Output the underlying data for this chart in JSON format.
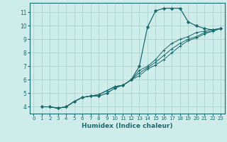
{
  "title": "",
  "xlabel": "Humidex (Indice chaleur)",
  "ylabel": "",
  "background_color": "#ceecea",
  "grid_color": "#a8ceca",
  "line_color": "#1a6b6b",
  "xlim": [
    -0.5,
    23.5
  ],
  "ylim": [
    3.5,
    11.7
  ],
  "xticks": [
    0,
    1,
    2,
    3,
    4,
    5,
    6,
    7,
    8,
    9,
    10,
    11,
    12,
    13,
    14,
    15,
    16,
    17,
    18,
    19,
    20,
    21,
    22,
    23
  ],
  "yticks": [
    4,
    5,
    6,
    7,
    8,
    9,
    10,
    11
  ],
  "series": [
    [
      4.0,
      4.0,
      3.9,
      4.0,
      4.4,
      4.7,
      4.8,
      4.8,
      5.0,
      5.4,
      5.6,
      6.0,
      7.0,
      9.9,
      11.1,
      11.3,
      11.3,
      11.3,
      10.3,
      10.0,
      9.8,
      9.7,
      9.8
    ],
    [
      4.0,
      4.0,
      3.9,
      4.0,
      4.4,
      4.7,
      4.8,
      4.9,
      5.2,
      5.5,
      5.6,
      6.0,
      6.7,
      7.0,
      7.5,
      8.2,
      8.7,
      9.0,
      9.2,
      9.5,
      9.6,
      9.7,
      9.8
    ],
    [
      4.0,
      4.0,
      3.9,
      4.0,
      4.4,
      4.7,
      4.8,
      4.9,
      5.2,
      5.5,
      5.6,
      6.0,
      6.5,
      6.9,
      7.3,
      7.8,
      8.3,
      8.7,
      9.0,
      9.2,
      9.5,
      9.6,
      9.8
    ],
    [
      4.0,
      4.0,
      3.9,
      4.0,
      4.4,
      4.7,
      4.8,
      4.9,
      5.2,
      5.5,
      5.6,
      6.0,
      6.3,
      6.8,
      7.1,
      7.5,
      8.0,
      8.5,
      8.9,
      9.1,
      9.4,
      9.6,
      9.8
    ]
  ]
}
